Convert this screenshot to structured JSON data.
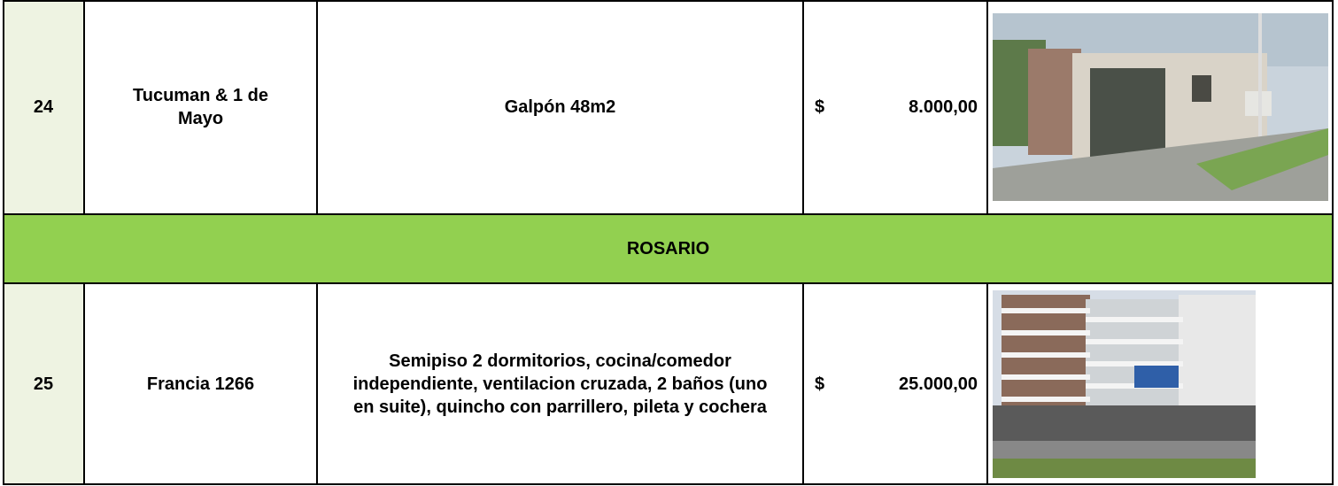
{
  "table": {
    "rows": [
      {
        "number": "24",
        "address": "Tucuman & 1 de Mayo",
        "description": "Galpón 48m2",
        "currency": "$",
        "price": "8.000,00"
      },
      {
        "section": "ROSARIO"
      },
      {
        "number": "25",
        "address": "Francia 1266",
        "description": "Semipiso 2 dormitorios, cocina/comedor independiente, ventilacion cruzada, 2 baños (uno en suite), quincho con parrillero, pileta y cochera",
        "currency": "$",
        "price": "25.000,00"
      }
    ]
  }
}
